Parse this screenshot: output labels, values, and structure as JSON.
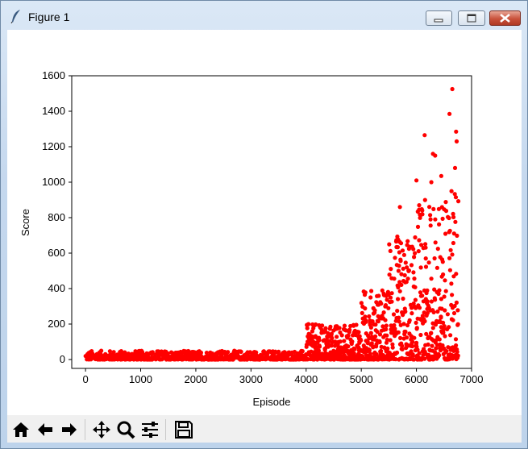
{
  "window": {
    "title": "Figure 1",
    "controls": [
      "minimize",
      "maximize",
      "close"
    ]
  },
  "toolbar": {
    "buttons": [
      {
        "name": "home",
        "icon": "home-icon"
      },
      {
        "name": "back",
        "icon": "arrow-left-icon"
      },
      {
        "name": "forward",
        "icon": "arrow-right-icon"
      },
      {
        "name": "pan",
        "icon": "move-icon"
      },
      {
        "name": "zoom",
        "icon": "magnifier-icon"
      },
      {
        "name": "subplots",
        "icon": "sliders-icon"
      },
      {
        "name": "save",
        "icon": "floppy-icon"
      }
    ]
  },
  "colors": {
    "marker": "#ff0000"
  },
  "chart_data": {
    "type": "scatter",
    "title": "",
    "xlabel": "Episode",
    "ylabel": "Score",
    "xlim": [
      -250,
      7000
    ],
    "ylim": [
      -50,
      1600
    ],
    "xticks": [
      0,
      1000,
      2000,
      3000,
      4000,
      5000,
      6000,
      7000
    ],
    "yticks": [
      0,
      200,
      400,
      600,
      800,
      1000,
      1200,
      1400,
      1600
    ],
    "grid": false,
    "legend": "none",
    "n_episodes": 6760,
    "segments": [
      {
        "x_from": 0,
        "x_to": 4000,
        "y_min": 0,
        "y_max": 50
      },
      {
        "x_from": 4000,
        "x_to": 5000,
        "y_min": 0,
        "y_max": 200
      },
      {
        "x_from": 5000,
        "x_to": 5500,
        "y_min": 0,
        "y_max": 400
      },
      {
        "x_from": 5500,
        "x_to": 6000,
        "y_min": 0,
        "y_max": 700
      },
      {
        "x_from": 6000,
        "x_to": 6500,
        "y_min": 0,
        "y_max": 900
      },
      {
        "x_from": 6500,
        "x_to": 6760,
        "y_min": 0,
        "y_max": 1000
      }
    ],
    "notable_points": [
      {
        "x": 5700,
        "y": 860
      },
      {
        "x": 6000,
        "y": 1010
      },
      {
        "x": 6050,
        "y": 870
      },
      {
        "x": 6150,
        "y": 1265
      },
      {
        "x": 6270,
        "y": 1000
      },
      {
        "x": 6300,
        "y": 1160
      },
      {
        "x": 6340,
        "y": 1150
      },
      {
        "x": 6450,
        "y": 1035
      },
      {
        "x": 6600,
        "y": 1385
      },
      {
        "x": 6650,
        "y": 1525
      },
      {
        "x": 6700,
        "y": 1080
      },
      {
        "x": 6720,
        "y": 1285
      },
      {
        "x": 6730,
        "y": 1230
      },
      {
        "x": 6715,
        "y": 915
      }
    ]
  }
}
